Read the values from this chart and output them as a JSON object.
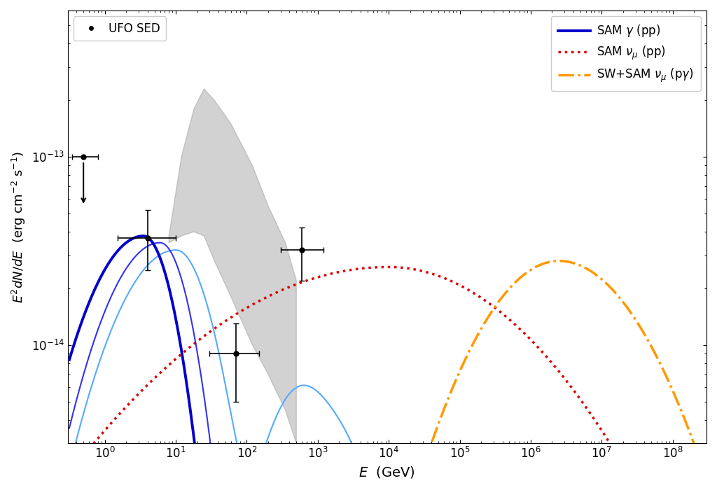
{
  "title": "",
  "xlabel": "$E$  (GeV)",
  "ylabel": "$E^2 dN/dE$  (erg cm$^{-2}$ s$^{-1}$)",
  "xlim": [
    0.3,
    300000000.0
  ],
  "ylim": [
    3e-15,
    6e-13
  ],
  "background_color": "#ffffff",
  "sam_gamma_thick_color": "#0000cc",
  "sam_gamma_thin_color": "#3333ee",
  "sam_gamma_cyan_color": "#55aaff",
  "sam_nu_pp_color": "#dd0000",
  "sw_sam_nu_pgamma_color": "#ff9900",
  "legend_entries": [
    {
      "label": "SAM $\\gamma$ (pp)"
    },
    {
      "label": "SAM $\\nu_\\mu$ (pp)"
    },
    {
      "label": "SW+SAM $\\nu_\\mu$ (p$\\gamma$)"
    }
  ],
  "obs_label": "UFO SED"
}
